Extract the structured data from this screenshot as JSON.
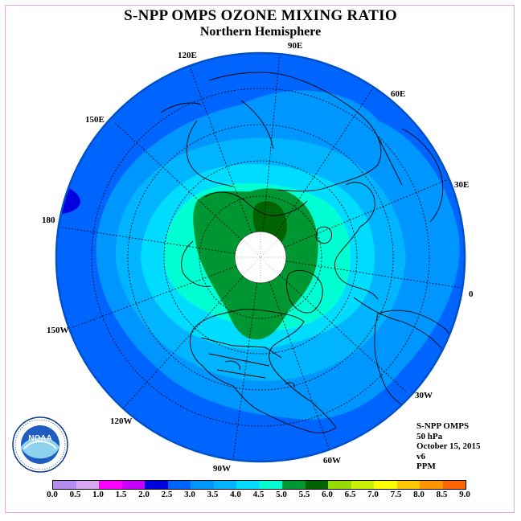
{
  "title": "S-NPP OMPS OZONE MIXING RATIO",
  "subtitle": "Northern Hemisphere",
  "longitude_labels": {
    "e90": "90E",
    "e120": "120E",
    "e60": "60E",
    "e150": "150E",
    "e30": "30E",
    "d180": "180",
    "d0": "0",
    "w150": "150W",
    "w30": "30W",
    "w120": "120W",
    "w60": "60W",
    "w90": "90W"
  },
  "info": {
    "instrument": "S-NPP OMPS",
    "level": "50 hPa",
    "date": "October 15, 2015",
    "version": "v6",
    "units": "PPM"
  },
  "logo": {
    "text": "NOAA",
    "ring_text": "NATIONAL OCEANIC AND ATMOSPHERIC ADMINISTRATION · U.S. DEPARTMENT OF COMMERCE"
  },
  "colorbar": {
    "colors": [
      "#b48cf0",
      "#d8a8f0",
      "#ff00ff",
      "#c800ff",
      "#0000e0",
      "#0064ff",
      "#0096ff",
      "#00b4ff",
      "#00dcff",
      "#00ffd2",
      "#009632",
      "#006400",
      "#96dc00",
      "#c8f000",
      "#ffff00",
      "#ffc800",
      "#ff9600",
      "#ff6400",
      "#ff0000",
      "#8c4632"
    ],
    "ticks": [
      "0.0",
      "0.5",
      "1.0",
      "1.5",
      "2.0",
      "2.5",
      "3.0",
      "3.5",
      "4.0",
      "4.5",
      "5.0",
      "5.5",
      "6.0",
      "6.5",
      "7.0",
      "7.5",
      "8.0",
      "8.5",
      "9.0"
    ]
  }
}
